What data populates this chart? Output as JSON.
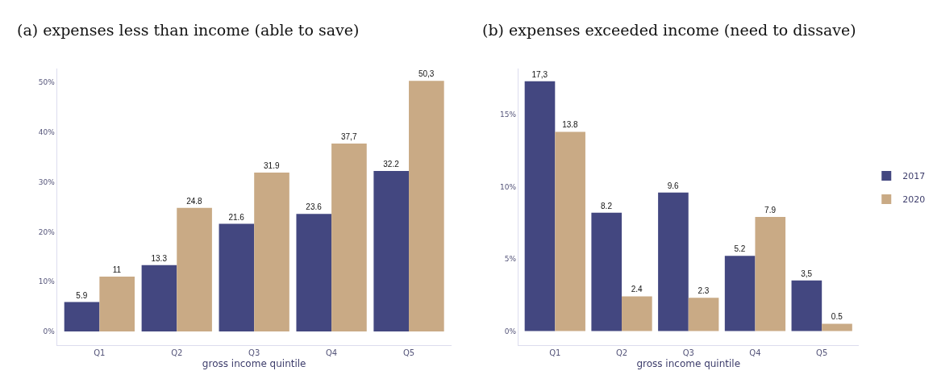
{
  "chart_data": [
    {
      "type": "bar",
      "title": "(a) expenses less than income (able to save)",
      "xlabel": "gross income quintile",
      "categories": [
        "Q1",
        "Q2",
        "Q3",
        "Q4",
        "Q5"
      ],
      "series": [
        {
          "name": "2017",
          "color": "#434780",
          "values": [
            5.9,
            13.3,
            21.6,
            23.6,
            32.2
          ],
          "value_labels": [
            "5.9",
            "13.3",
            "21.6",
            "23.6",
            "32.2"
          ]
        },
        {
          "name": "2020",
          "color": "#c9aa85",
          "values": [
            11,
            24.8,
            31.9,
            37.7,
            50.3
          ],
          "value_labels": [
            "11",
            "24.8",
            "31.9",
            "37,7",
            "50,3"
          ]
        }
      ],
      "ylim": [
        -2.8,
        52.8
      ],
      "yticks": [
        {
          "value": 0,
          "label": "0%"
        },
        {
          "value": 10,
          "label": "10%"
        },
        {
          "value": 20,
          "label": "20%"
        },
        {
          "value": 30,
          "label": "30%"
        },
        {
          "value": 40,
          "label": "40%"
        },
        {
          "value": 50,
          "label": "50%"
        }
      ],
      "legend": "right"
    },
    {
      "type": "bar",
      "title": "(b) expenses exceeded income (need to dissave)",
      "xlabel": "gross income quintile",
      "categories": [
        "Q1",
        "Q2",
        "Q3",
        "Q4",
        "Q5"
      ],
      "series": [
        {
          "name": "2017",
          "color": "#434780",
          "values": [
            17.3,
            8.2,
            9.6,
            5.2,
            3.5
          ],
          "value_labels": [
            "17,3",
            "8.2",
            "9.6",
            "5.2",
            "3,5"
          ]
        },
        {
          "name": "2020",
          "color": "#c9aa85",
          "values": [
            13.8,
            2.4,
            2.3,
            7.9,
            0.5
          ],
          "value_labels": [
            "13.8",
            "2.4",
            "2.3",
            "7.9",
            "0.5"
          ]
        }
      ],
      "ylim": [
        -1,
        18.2
      ],
      "yticks": [
        {
          "value": 0,
          "label": "0%"
        },
        {
          "value": 5,
          "label": "5%"
        },
        {
          "value": 10,
          "label": "10%"
        },
        {
          "value": 15,
          "label": "15%"
        }
      ],
      "tick_labels": null
    }
  ]
}
